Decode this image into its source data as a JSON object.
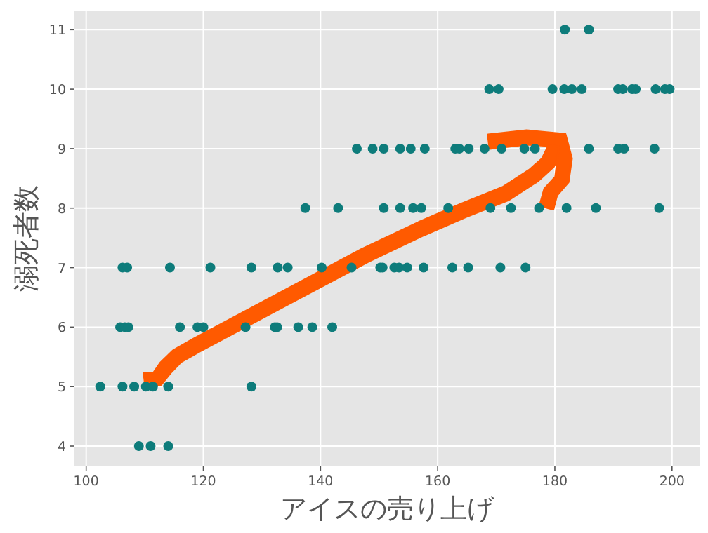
{
  "chart_data": {
    "type": "scatter",
    "xlabel": "アイスの売り上げ",
    "ylabel": "溺死者数",
    "xlim": [
      98,
      204.7
    ],
    "ylim": [
      3.67,
      11.31
    ],
    "xticks": [
      100,
      120,
      140,
      160,
      180,
      200
    ],
    "yticks": [
      4,
      5,
      6,
      7,
      8,
      9,
      10,
      11
    ],
    "grid": true,
    "marker": "circle",
    "series": [
      {
        "color": "#0e7c7b",
        "x": [
          109,
          111,
          114,
          102.4,
          106.2,
          108.2,
          110.2,
          111.4,
          114,
          128.2,
          105.8,
          106.6,
          107.2,
          116,
          119,
          120,
          127.2,
          132.2,
          132.6,
          136.2,
          138.6,
          142,
          106.2,
          107,
          114.3,
          121.2,
          128.2,
          132.7,
          134.4,
          140.2,
          145.3,
          150.2,
          150.6,
          152.6,
          153.4,
          154.8,
          157.6,
          162.5,
          165.2,
          170.7,
          175,
          137.4,
          143,
          150.8,
          153.6,
          155.8,
          157.2,
          161.8,
          169,
          172.5,
          177.3,
          182,
          187,
          197.8,
          146.2,
          148.9,
          150.8,
          153.6,
          155.4,
          157.8,
          163,
          163.7,
          165.3,
          168,
          170.9,
          174.8,
          176.6,
          185.8,
          190.8,
          191.8,
          197,
          168.8,
          170.4,
          179.6,
          181.6,
          182.9,
          184.6,
          190.8,
          191.6,
          193.2,
          193.8,
          197.2,
          198.8,
          199.6,
          181.7,
          185.8
        ],
        "values": [
          4,
          4,
          4,
          5,
          5,
          5,
          5,
          5,
          5,
          5,
          6,
          6,
          6,
          6,
          6,
          6,
          6,
          6,
          6,
          6,
          6,
          6,
          7,
          7,
          7,
          7,
          7,
          7,
          7,
          7,
          7,
          7,
          7,
          7,
          7,
          7,
          7,
          7,
          7,
          7,
          7,
          8,
          8,
          8,
          8,
          8,
          8,
          8,
          8,
          8,
          8,
          8,
          8,
          8,
          9,
          9,
          9,
          9,
          9,
          9,
          9,
          9,
          9,
          9,
          9,
          9,
          9,
          9,
          9,
          9,
          9,
          10,
          10,
          10,
          10,
          10,
          10,
          10,
          10,
          10,
          10,
          10,
          10,
          10,
          11,
          11
        ]
      }
    ]
  }
}
